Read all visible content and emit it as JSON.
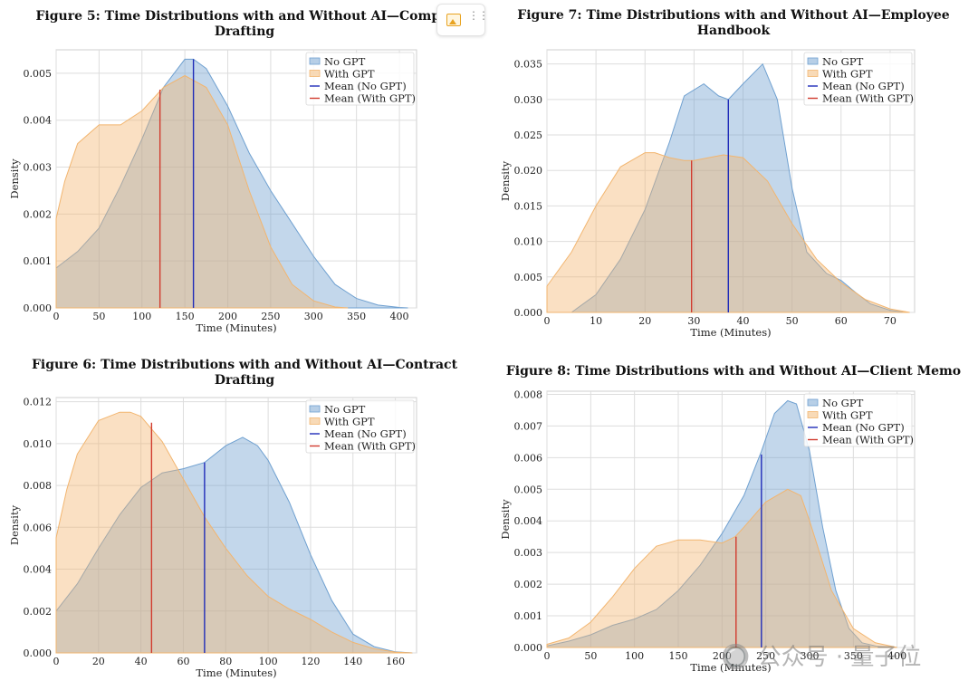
{
  "colors": {
    "no_gpt": "#6fa0d0",
    "with_gpt": "#f2b56f",
    "mean_no": "#1f2bb8",
    "mean_with": "#d13b2e",
    "grid": "#dddddd"
  },
  "toolbar": {
    "icons": [
      "image-icon",
      "drag-handle-icon"
    ]
  },
  "watermark": "🔘 公众号 · 量子位",
  "chart_data": [
    {
      "id": "fig5",
      "type": "area",
      "title": "Figure 5: Time Distributions with and Without AI—Compla\nDrafting",
      "xlabel": "Time (Minutes)",
      "ylabel": "Density",
      "xlim": [
        0,
        420
      ],
      "ylim": [
        0,
        0.0055
      ],
      "xticks": [
        0,
        50,
        100,
        150,
        200,
        250,
        300,
        350,
        400
      ],
      "yticks": [
        0.0,
        0.001,
        0.002,
        0.003,
        0.004,
        0.005
      ],
      "ydecimals": 3,
      "grid": true,
      "legend": "top-right",
      "series": [
        {
          "name": "No GPT",
          "x": [
            0,
            25,
            50,
            75,
            100,
            125,
            150,
            160,
            175,
            200,
            225,
            250,
            275,
            300,
            325,
            350,
            375,
            400,
            410
          ],
          "values": [
            0.00085,
            0.0012,
            0.0017,
            0.0026,
            0.0036,
            0.0047,
            0.0053,
            0.0053,
            0.0051,
            0.0043,
            0.0033,
            0.0025,
            0.0018,
            0.0011,
            0.0005,
            0.0002,
            6e-05,
            1e-05,
            0.0
          ]
        },
        {
          "name": "With GPT",
          "x": [
            0,
            10,
            25,
            50,
            75,
            100,
            125,
            150,
            175,
            200,
            225,
            250,
            275,
            300,
            325,
            340
          ],
          "values": [
            0.0019,
            0.0027,
            0.0035,
            0.0039,
            0.0039,
            0.0042,
            0.0047,
            0.00495,
            0.0047,
            0.0039,
            0.0025,
            0.0013,
            0.0005,
            0.00015,
            2e-05,
            0.0
          ]
        }
      ],
      "means": [
        {
          "name": "Mean (No GPT)",
          "x": 160,
          "y": 0.0053
        },
        {
          "name": "Mean (With GPT)",
          "x": 121,
          "y": 0.00465
        }
      ]
    },
    {
      "id": "fig7",
      "type": "area",
      "title": "Figure 7: Time Distributions with and Without AI—Employee\nHandbook",
      "xlabel": "Time (Minutes)",
      "ylabel": "Density",
      "xlim": [
        0,
        75
      ],
      "ylim": [
        0,
        0.037
      ],
      "xticks": [
        0,
        10,
        20,
        30,
        40,
        50,
        60,
        70
      ],
      "yticks": [
        0.0,
        0.005,
        0.01,
        0.015,
        0.02,
        0.025,
        0.03,
        0.035
      ],
      "ydecimals": 3,
      "grid": true,
      "legend": "top-right",
      "series": [
        {
          "name": "No GPT",
          "x": [
            5,
            10,
            15,
            20,
            25,
            28,
            32,
            35,
            37,
            40,
            44,
            47,
            50,
            53,
            57,
            60,
            63,
            66,
            70,
            73
          ],
          "values": [
            0.0,
            0.0025,
            0.0075,
            0.0145,
            0.024,
            0.0305,
            0.0322,
            0.0305,
            0.03,
            0.0322,
            0.035,
            0.03,
            0.0175,
            0.0085,
            0.0055,
            0.0045,
            0.0028,
            0.0012,
            0.0003,
            0.0
          ]
        },
        {
          "name": "With GPT",
          "x": [
            0,
            5,
            10,
            15,
            20,
            22,
            25,
            28,
            30,
            33,
            36,
            40,
            45,
            50,
            55,
            60,
            65,
            70,
            74
          ],
          "values": [
            0.0037,
            0.0085,
            0.015,
            0.0205,
            0.0225,
            0.0225,
            0.0218,
            0.0214,
            0.0214,
            0.0218,
            0.0222,
            0.0218,
            0.0185,
            0.0125,
            0.0075,
            0.0042,
            0.0018,
            0.0005,
            0.0
          ]
        }
      ],
      "means": [
        {
          "name": "Mean (No GPT)",
          "x": 37,
          "y": 0.03
        },
        {
          "name": "Mean (With GPT)",
          "x": 29.5,
          "y": 0.0214
        }
      ]
    },
    {
      "id": "fig6",
      "type": "area",
      "title": "Figure 6: Time Distributions with and Without AI—Contract\nDrafting",
      "xlabel": "Time (Minutes)",
      "ylabel": "Density",
      "xlim": [
        0,
        170
      ],
      "ylim": [
        0,
        0.0122
      ],
      "xticks": [
        0,
        20,
        40,
        60,
        80,
        100,
        120,
        140,
        160
      ],
      "yticks": [
        0.0,
        0.002,
        0.004,
        0.006,
        0.008,
        0.01,
        0.012
      ],
      "ydecimals": 3,
      "grid": true,
      "legend": "top-right",
      "series": [
        {
          "name": "No GPT",
          "x": [
            0,
            10,
            20,
            30,
            40,
            50,
            60,
            70,
            80,
            88,
            95,
            100,
            110,
            120,
            130,
            140,
            150,
            160,
            168
          ],
          "values": [
            0.002,
            0.0033,
            0.005,
            0.0066,
            0.0079,
            0.0086,
            0.0088,
            0.0091,
            0.0099,
            0.0103,
            0.0099,
            0.0092,
            0.0072,
            0.0047,
            0.0025,
            0.0009,
            0.0003,
            5e-05,
            0.0
          ]
        },
        {
          "name": "With GPT",
          "x": [
            0,
            5,
            10,
            20,
            30,
            35,
            40,
            50,
            60,
            70,
            80,
            90,
            100,
            110,
            120,
            130,
            140,
            150,
            160,
            168
          ],
          "values": [
            0.0055,
            0.0078,
            0.0095,
            0.0111,
            0.0115,
            0.0115,
            0.0113,
            0.0101,
            0.0083,
            0.0065,
            0.005,
            0.0037,
            0.0027,
            0.0021,
            0.0016,
            0.001,
            0.0005,
            0.0002,
            4e-05,
            0.0
          ]
        }
      ],
      "means": [
        {
          "name": "Mean (No GPT)",
          "x": 70,
          "y": 0.0091
        },
        {
          "name": "Mean (With GPT)",
          "x": 45,
          "y": 0.011
        }
      ]
    },
    {
      "id": "fig8",
      "type": "area",
      "title": "Figure 8: Time Distributions with and Without AI—Client Memo",
      "xlabel": "Time (Minutes)",
      "ylabel": "Density",
      "xlim": [
        0,
        420
      ],
      "ylim": [
        0,
        0.0081
      ],
      "xticks": [
        0,
        50,
        100,
        150,
        200,
        250,
        300,
        350,
        400
      ],
      "yticks": [
        0.0,
        0.001,
        0.002,
        0.003,
        0.004,
        0.005,
        0.006,
        0.007,
        0.008
      ],
      "ydecimals": 3,
      "grid": true,
      "legend": "top-right",
      "series": [
        {
          "name": "No GPT",
          "x": [
            0,
            25,
            50,
            75,
            100,
            125,
            150,
            175,
            200,
            225,
            245,
            260,
            275,
            285,
            300,
            315,
            330,
            345,
            360,
            380,
            400
          ],
          "values": [
            5e-05,
            0.0002,
            0.0004,
            0.0007,
            0.0009,
            0.0012,
            0.0018,
            0.0026,
            0.0036,
            0.0048,
            0.0062,
            0.0074,
            0.0078,
            0.0077,
            0.0062,
            0.0038,
            0.0018,
            0.0006,
            0.00015,
            2e-05,
            0.0
          ]
        },
        {
          "name": "With GPT",
          "x": [
            0,
            25,
            50,
            75,
            100,
            125,
            150,
            175,
            200,
            215,
            225,
            250,
            275,
            290,
            300,
            325,
            350,
            375,
            400
          ],
          "values": [
            0.0001,
            0.0003,
            0.0008,
            0.0016,
            0.0025,
            0.0032,
            0.0034,
            0.0034,
            0.0033,
            0.0035,
            0.0038,
            0.0046,
            0.005,
            0.0048,
            0.004,
            0.0018,
            0.0006,
            0.00015,
            0.0
          ]
        }
      ],
      "means": [
        {
          "name": "Mean (No GPT)",
          "x": 245,
          "y": 0.0061
        },
        {
          "name": "Mean (With GPT)",
          "x": 216,
          "y": 0.0035
        }
      ]
    }
  ]
}
